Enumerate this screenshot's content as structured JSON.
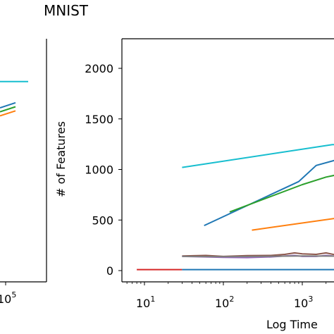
{
  "page_title": "MNIST",
  "colors": {
    "tab_blue": "#1f77b4",
    "tab_orange": "#ff7f0e",
    "tab_green": "#2ca02c",
    "tab_red": "#d62728",
    "tab_purple": "#9467bd",
    "tab_brown": "#8c564b",
    "tab_gray": "#7f7f7f",
    "tab_cyan": "#17becf"
  },
  "chart_data": [
    {
      "type": "line",
      "title": "MNIST",
      "xlabel": "Log Time",
      "ylabel": "# of Features",
      "xscale": "log",
      "xlim": [
        3,
        5000
      ],
      "ylim": [
        -110,
        2300
      ],
      "grid": false,
      "yticks": [
        0,
        500,
        1000,
        1500,
        2000
      ],
      "xticks": [
        {
          "value": 10,
          "label": "10",
          "exp": "1"
        },
        {
          "value": 100,
          "label": "10",
          "exp": "2"
        },
        {
          "value": 1000,
          "label": "10",
          "exp": "3"
        }
      ],
      "series": [
        {
          "color": "#17becf",
          "points": [
            [
              30,
              1020
            ],
            [
              2400,
              1245
            ],
            [
              5000,
              1245
            ]
          ]
        },
        {
          "color": "#1f77b4",
          "points": [
            [
              57,
              445
            ],
            [
              900,
              880
            ],
            [
              1500,
              1040
            ],
            [
              5000,
              1100
            ]
          ]
        },
        {
          "color": "#2ca02c",
          "points": [
            [
              120,
              580
            ],
            [
              1000,
              850
            ],
            [
              2000,
              925
            ],
            [
              5000,
              950
            ]
          ]
        },
        {
          "color": "#ff7f0e",
          "points": [
            [
              230,
              400
            ],
            [
              2800,
              520
            ],
            [
              5000,
              580
            ]
          ]
        },
        {
          "color": "#8c564b",
          "points": [
            [
              30,
              145
            ],
            [
              60,
              150
            ],
            [
              100,
              140
            ],
            [
              200,
              148
            ],
            [
              400,
              150
            ],
            [
              600,
              160
            ],
            [
              800,
              175
            ],
            [
              1000,
              165
            ],
            [
              1500,
              160
            ],
            [
              2000,
              175
            ],
            [
              3000,
              150
            ],
            [
              5000,
              155
            ]
          ]
        },
        {
          "color": "#9467bd",
          "points": [
            [
              30,
              140
            ],
            [
              60,
              135
            ],
            [
              100,
              130
            ],
            [
              200,
              128
            ],
            [
              400,
              135
            ],
            [
              600,
              145
            ],
            [
              800,
              150
            ],
            [
              1000,
              140
            ],
            [
              1500,
              140
            ],
            [
              2000,
              150
            ],
            [
              3000,
              140
            ],
            [
              5000,
              140
            ]
          ]
        },
        {
          "color": "#7f7f7f",
          "points": [
            [
              30,
              140
            ],
            [
              100,
              138
            ],
            [
              300,
              140
            ],
            [
              1000,
              145
            ],
            [
              5000,
              142
            ]
          ]
        },
        {
          "color": "#d62728",
          "points": [
            [
              8,
              10
            ],
            [
              30,
              10
            ]
          ]
        },
        {
          "color": "#1f77b4",
          "points": [
            [
              30,
              10
            ],
            [
              5000,
              10
            ]
          ]
        }
      ]
    },
    {
      "type": "line",
      "title": "",
      "xlabel": "",
      "ylabel": "",
      "partial": "cropped-left-panel",
      "xtick_label": "10",
      "xtick_exp": "5",
      "series": [
        {
          "color": "#17becf",
          "points": [
            [
              0,
              1870
            ],
            [
              1,
              1870
            ]
          ]
        },
        {
          "color": "#1f77b4",
          "points": [
            [
              0,
              1610
            ],
            [
              1,
              1660
            ]
          ]
        },
        {
          "color": "#2ca02c",
          "points": [
            [
              0,
              1570
            ],
            [
              1,
              1620
            ]
          ]
        },
        {
          "color": "#ff7f0e",
          "points": [
            [
              0,
              1530
            ],
            [
              1,
              1580
            ]
          ]
        }
      ]
    }
  ]
}
